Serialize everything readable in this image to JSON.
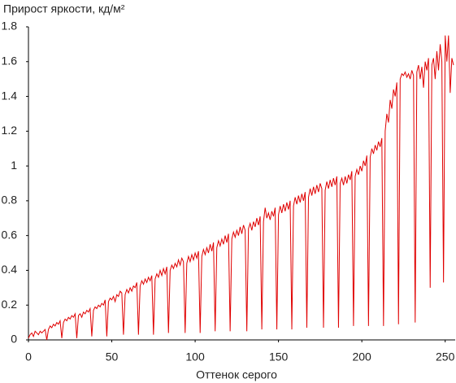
{
  "chart_data": {
    "type": "line",
    "title": "Прирост яркости, кд/м²",
    "x_label": "Оттенок серого",
    "x": [
      0,
      1,
      2,
      3,
      4,
      5,
      6,
      7,
      8,
      9,
      10,
      11,
      12,
      13,
      14,
      15,
      16,
      17,
      18,
      19,
      20,
      21,
      22,
      23,
      24,
      25,
      26,
      27,
      28,
      29,
      30,
      31,
      32,
      33,
      34,
      35,
      36,
      37,
      38,
      39,
      40,
      41,
      42,
      43,
      44,
      45,
      46,
      47,
      48,
      49,
      50,
      51,
      52,
      53,
      54,
      55,
      56,
      57,
      58,
      59,
      60,
      61,
      62,
      63,
      64,
      65,
      66,
      67,
      68,
      69,
      70,
      71,
      72,
      73,
      74,
      75,
      76,
      77,
      78,
      79,
      80,
      81,
      82,
      83,
      84,
      85,
      86,
      87,
      88,
      89,
      90,
      91,
      92,
      93,
      94,
      95,
      96,
      97,
      98,
      99,
      100,
      101,
      102,
      103,
      104,
      105,
      106,
      107,
      108,
      109,
      110,
      111,
      112,
      113,
      114,
      115,
      116,
      117,
      118,
      119,
      120,
      121,
      122,
      123,
      124,
      125,
      126,
      127,
      128,
      129,
      130,
      131,
      132,
      133,
      134,
      135,
      136,
      137,
      138,
      139,
      140,
      141,
      142,
      143,
      144,
      145,
      146,
      147,
      148,
      149,
      150,
      151,
      152,
      153,
      154,
      155,
      156,
      157,
      158,
      159,
      160,
      161,
      162,
      163,
      164,
      165,
      166,
      167,
      168,
      169,
      170,
      171,
      172,
      173,
      174,
      175,
      176,
      177,
      178,
      179,
      180,
      181,
      182,
      183,
      184,
      185,
      186,
      187,
      188,
      189,
      190,
      191,
      192,
      193,
      194,
      195,
      196,
      197,
      198,
      199,
      200,
      201,
      202,
      203,
      204,
      205,
      206,
      207,
      208,
      209,
      210,
      211,
      212,
      213,
      214,
      215,
      216,
      217,
      218,
      219,
      220,
      221,
      222,
      223,
      224,
      225,
      226,
      227,
      228,
      229,
      230,
      231,
      232,
      233,
      234,
      235,
      236,
      237,
      238,
      239,
      240,
      241,
      242,
      243,
      244,
      245,
      246,
      247,
      248,
      249,
      250,
      251,
      252,
      253,
      254,
      255
    ],
    "series": [
      {
        "color": "#e00000",
        "values": [
          0.01,
          0.03,
          0.04,
          0.02,
          0.05,
          0.04,
          0.03,
          0.05,
          0.04,
          0.05,
          0.06,
          0.0,
          0.06,
          0.08,
          0.07,
          0.09,
          0.08,
          0.1,
          0.09,
          0.11,
          0.01,
          0.1,
          0.12,
          0.11,
          0.13,
          0.12,
          0.14,
          0.13,
          0.15,
          0.01,
          0.14,
          0.15,
          0.13,
          0.16,
          0.15,
          0.17,
          0.16,
          0.18,
          0.02,
          0.17,
          0.19,
          0.18,
          0.2,
          0.19,
          0.21,
          0.2,
          0.23,
          0.02,
          0.22,
          0.24,
          0.23,
          0.25,
          0.22,
          0.26,
          0.25,
          0.28,
          0.27,
          0.03,
          0.26,
          0.29,
          0.27,
          0.3,
          0.28,
          0.31,
          0.3,
          0.33,
          0.03,
          0.31,
          0.34,
          0.32,
          0.35,
          0.33,
          0.36,
          0.34,
          0.37,
          0.03,
          0.35,
          0.38,
          0.36,
          0.4,
          0.37,
          0.41,
          0.38,
          0.42,
          0.04,
          0.4,
          0.43,
          0.41,
          0.44,
          0.42,
          0.46,
          0.43,
          0.47,
          0.45,
          0.04,
          0.44,
          0.48,
          0.45,
          0.49,
          0.46,
          0.5,
          0.47,
          0.51,
          0.04,
          0.48,
          0.52,
          0.49,
          0.53,
          0.5,
          0.55,
          0.51,
          0.56,
          0.05,
          0.53,
          0.57,
          0.54,
          0.58,
          0.55,
          0.6,
          0.56,
          0.61,
          0.05,
          0.58,
          0.62,
          0.59,
          0.63,
          0.6,
          0.65,
          0.61,
          0.66,
          0.63,
          0.05,
          0.64,
          0.67,
          0.63,
          0.68,
          0.65,
          0.7,
          0.66,
          0.71,
          0.06,
          0.68,
          0.76,
          0.7,
          0.73,
          0.69,
          0.74,
          0.71,
          0.76,
          0.06,
          0.72,
          0.77,
          0.73,
          0.78,
          0.74,
          0.79,
          0.75,
          0.8,
          0.06,
          0.77,
          0.82,
          0.78,
          0.83,
          0.79,
          0.84,
          0.8,
          0.85,
          0.07,
          0.82,
          0.87,
          0.83,
          0.88,
          0.84,
          0.89,
          0.85,
          0.9,
          0.87,
          0.07,
          0.86,
          0.91,
          0.87,
          0.92,
          0.88,
          0.93,
          0.89,
          0.94,
          0.07,
          0.9,
          0.93,
          0.89,
          0.94,
          0.9,
          0.95,
          0.92,
          0.97,
          0.08,
          0.94,
          0.98,
          0.95,
          1.0,
          0.97,
          1.03,
          1.0,
          1.06,
          0.08,
          1.05,
          1.1,
          1.07,
          1.12,
          1.09,
          1.14,
          1.11,
          1.16,
          0.08,
          1.2,
          1.3,
          1.25,
          1.38,
          1.33,
          1.44,
          1.4,
          1.48,
          0.09,
          1.5,
          1.53,
          1.52,
          1.54,
          1.51,
          1.53,
          1.5,
          1.55,
          1.52,
          0.1,
          1.54,
          1.58,
          1.5,
          1.57,
          1.45,
          1.6,
          1.55,
          1.62,
          0.3,
          1.58,
          1.62,
          1.5,
          1.66,
          1.55,
          1.7,
          1.6,
          0.33,
          1.75,
          1.6,
          1.75,
          1.42,
          1.62,
          1.58
        ]
      }
    ],
    "xlim": [
      0,
      256
    ],
    "xticks": [
      0,
      50,
      100,
      150,
      200,
      250
    ],
    "ylim": [
      0,
      1.8
    ],
    "yticks": [
      0,
      0.2,
      0.4,
      0.6,
      0.8,
      1,
      1.2,
      1.4,
      1.6,
      1.8
    ]
  }
}
